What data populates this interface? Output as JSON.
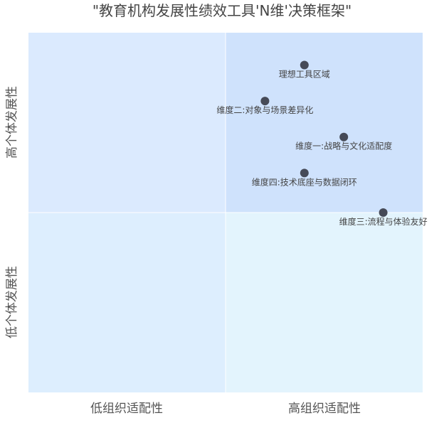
{
  "chart_data": {
    "type": "scatter",
    "title": "\"教育机构发展性绩效工具'N维'决策框架\"",
    "xlabels": [
      "低组织适配性",
      "高组织适配性"
    ],
    "ylabels": [
      "高个体发展性",
      "低个体发展性"
    ],
    "xlim": [
      0,
      1
    ],
    "ylim": [
      0,
      1
    ],
    "quadrant_colors": {
      "top_left": "#dbeafe",
      "top_right": "#cfe2fc",
      "bottom_left": "#ddeefe",
      "bottom_right": "#e3f4fd"
    },
    "point_color": "#464a57",
    "points": [
      {
        "label": "理想工具区域",
        "x": 0.7,
        "y": 0.91
      },
      {
        "label": "维度二:对象与场景差异化",
        "x": 0.6,
        "y": 0.81
      },
      {
        "label": "维度一:战略与文化适配度",
        "x": 0.8,
        "y": 0.71
      },
      {
        "label": "维度四:技术底座与数据闭环",
        "x": 0.7,
        "y": 0.61
      },
      {
        "label": "维度三:流程与体验友好",
        "x": 0.9,
        "y": 0.5
      }
    ]
  }
}
